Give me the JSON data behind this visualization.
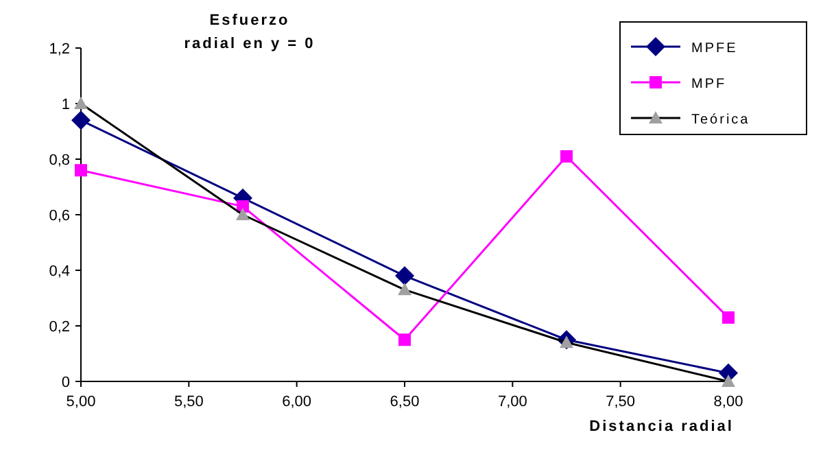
{
  "chart_data": {
    "type": "line",
    "title": "Esfuerzo radial en y = 0",
    "xlabel": "Distancia radial",
    "x": [
      5,
      5.75,
      6.5,
      7.25,
      8
    ],
    "xlim": [
      5,
      8
    ],
    "xticks": [
      {
        "value": 5,
        "label": "5,00"
      },
      {
        "value": 5.5,
        "label": "5,50"
      },
      {
        "value": 6,
        "label": "6,00"
      },
      {
        "value": 6.5,
        "label": "6,50"
      },
      {
        "value": 7,
        "label": "7,00"
      },
      {
        "value": 7.5,
        "label": "7,50"
      },
      {
        "value": 8,
        "label": "8,00"
      }
    ],
    "ylim": [
      0,
      1.2
    ],
    "yticks": [
      0,
      {
        "value": 0.2,
        "label": "0,2"
      },
      {
        "value": 0.4,
        "label": "0,4"
      },
      {
        "value": 0.6,
        "label": "0,6"
      },
      {
        "value": 0.8,
        "label": "0,8"
      },
      1,
      {
        "value": 1.2,
        "label": "1,2"
      }
    ],
    "grid": false,
    "legend": "top right",
    "series": [
      {
        "name": "MPFE",
        "color": "#000080",
        "marker": "diamond",
        "values": [
          0.94,
          0.66,
          0.38,
          0.15,
          0.03
        ]
      },
      {
        "name": "MPF",
        "color": "#ff00ff",
        "marker": "square",
        "values": [
          0.76,
          0.63,
          0.15,
          0.81,
          0.23
        ]
      },
      {
        "name": "Teórica",
        "color": "#000000",
        "marker": "triangle",
        "values": [
          1.0,
          0.6,
          0.33,
          0.14,
          0.0
        ]
      }
    ]
  }
}
